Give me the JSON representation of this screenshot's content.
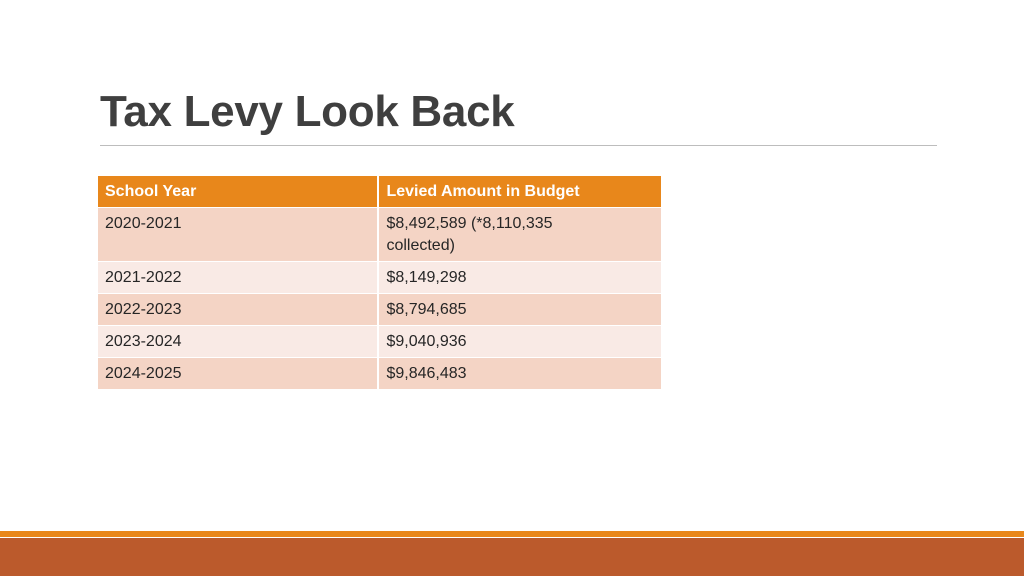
{
  "slide": {
    "title": "Tax Levy Look Back"
  },
  "table": {
    "headers": [
      "School Year",
      "Levied Amount in Budget"
    ],
    "rows": [
      {
        "year": "2020-2021",
        "amount": "$8,492,589 (*8,110,335 collected)"
      },
      {
        "year": "2021-2022",
        "amount": "$8,149,298"
      },
      {
        "year": "2022-2023",
        "amount": "$8,794,685"
      },
      {
        "year": "2023-2024",
        "amount": "$9,040,936"
      },
      {
        "year": "2024-2025",
        "amount": "$9,846,483"
      }
    ]
  },
  "colors": {
    "header_bg": "#e8871b",
    "row_odd_bg": "#f4d4c5",
    "row_even_bg": "#f9eae5",
    "footer_thin": "#e8871b",
    "footer_thick": "#bb5a2c",
    "title_text": "#3f3f3f"
  }
}
